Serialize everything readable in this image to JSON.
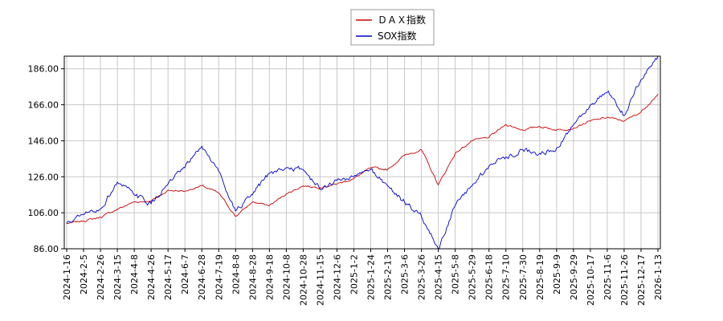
{
  "chart_data": {
    "type": "line",
    "title": "",
    "xlabel": "",
    "ylabel": "",
    "ylim": [
      86,
      193
    ],
    "y_ticks": [
      "86.00",
      "106.00",
      "126.00",
      "146.00",
      "166.00",
      "186.00"
    ],
    "y_tick_values": [
      86,
      106,
      126,
      146,
      166,
      186
    ],
    "x_tick_labels": [
      "2024-1-16",
      "2024-2-5",
      "2024-2-26",
      "2024-3-15",
      "2024-4-8",
      "2024-4-26",
      "2024-5-17",
      "2024-6-7",
      "2024-6-28",
      "2024-7-19",
      "2024-8-8",
      "2024-8-28",
      "2024-9-18",
      "2024-10-8",
      "2024-10-28",
      "2024-11-15",
      "2024-12-6",
      "2025-1-2",
      "2025-1-24",
      "2025-2-13",
      "2025-3-6",
      "2025-3-26",
      "2025-4-15",
      "2025-5-8",
      "2025-5-29",
      "2025-6-18",
      "2025-7-10",
      "2025-7-30",
      "2025-8-19",
      "2025-9-9",
      "2025-9-29",
      "2025-10-17",
      "2025-11-6",
      "2025-11-26",
      "2025-12-17",
      "2026-1-13"
    ],
    "grid": true,
    "legend_position": "top-center",
    "series": [
      {
        "name": "ＤＡＸ指数",
        "color": "#cc0000",
        "points": [
          [
            0,
            100
          ],
          [
            1,
            101.5
          ],
          [
            2,
            103.5
          ],
          [
            3,
            108
          ],
          [
            4,
            112
          ],
          [
            5,
            112.5
          ],
          [
            6,
            118.5
          ],
          [
            7,
            118
          ],
          [
            8,
            121
          ],
          [
            9,
            117
          ],
          [
            10,
            104
          ],
          [
            11,
            112
          ],
          [
            12,
            110
          ],
          [
            13,
            116.5
          ],
          [
            14,
            121
          ],
          [
            15,
            120
          ],
          [
            16,
            122
          ],
          [
            17,
            125
          ],
          [
            18,
            131
          ],
          [
            19,
            130
          ],
          [
            20,
            138
          ],
          [
            21,
            141
          ],
          [
            22,
            121.5
          ],
          [
            23,
            139
          ],
          [
            24,
            146
          ],
          [
            25,
            148
          ],
          [
            26,
            155
          ],
          [
            27,
            152
          ],
          [
            28,
            154
          ],
          [
            29,
            152
          ],
          [
            30,
            153
          ],
          [
            31,
            157
          ],
          [
            32,
            159
          ],
          [
            33,
            157
          ],
          [
            34,
            162
          ],
          [
            35,
            172
          ]
        ]
      },
      {
        "name": "SOX指数",
        "color": "#0000cc",
        "points": [
          [
            0,
            100
          ],
          [
            1,
            105
          ],
          [
            2,
            108
          ],
          [
            3,
            123
          ],
          [
            4,
            116
          ],
          [
            5,
            111
          ],
          [
            6,
            122
          ],
          [
            7,
            131
          ],
          [
            8,
            143
          ],
          [
            9,
            129
          ],
          [
            10,
            107
          ],
          [
            11,
            116
          ],
          [
            12,
            128
          ],
          [
            13,
            131
          ],
          [
            14,
            130
          ],
          [
            15,
            119
          ],
          [
            16,
            124
          ],
          [
            17,
            126
          ],
          [
            18,
            130
          ],
          [
            19,
            121
          ],
          [
            20,
            112
          ],
          [
            21,
            104
          ],
          [
            22,
            86
          ],
          [
            23,
            110
          ],
          [
            24,
            121
          ],
          [
            25,
            132
          ],
          [
            26,
            137
          ],
          [
            27,
            141
          ],
          [
            28,
            139
          ],
          [
            29,
            142
          ],
          [
            30,
            155
          ],
          [
            31,
            166
          ],
          [
            32,
            173
          ],
          [
            33,
            160
          ],
          [
            34,
            180
          ],
          [
            35,
            193
          ]
        ]
      }
    ]
  }
}
